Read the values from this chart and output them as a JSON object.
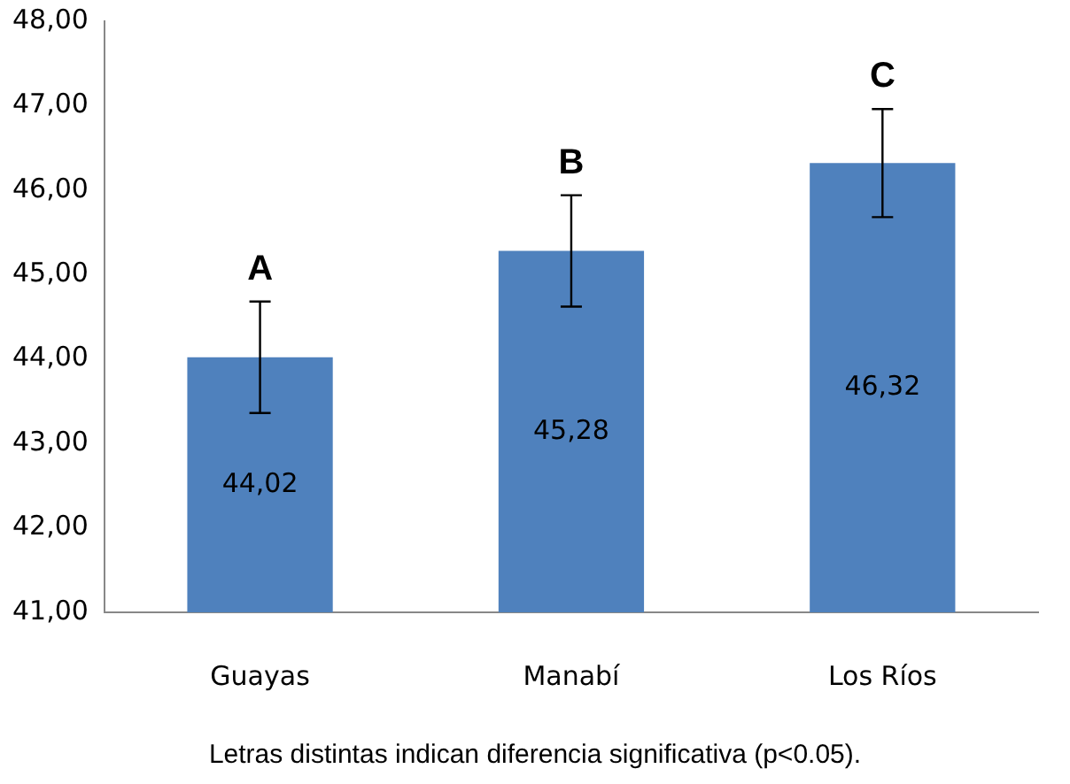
{
  "chart_data": {
    "type": "bar",
    "categories": [
      "Guayas",
      "Manabí",
      "Los Ríos"
    ],
    "series": [
      {
        "color": "#4f81bd",
        "values": [
          44.02,
          45.28,
          46.32
        ],
        "value_labels": [
          "44,02",
          "45,28",
          "46,32"
        ],
        "errors": [
          0.66,
          0.66,
          0.64
        ]
      }
    ],
    "ylim": [
      41,
      48
    ],
    "yticks": [
      {
        "value": 41,
        "label": "41,00"
      },
      {
        "value": 42,
        "label": "42,00"
      },
      {
        "value": 43,
        "label": "43,00"
      },
      {
        "value": 44,
        "label": "44,00"
      },
      {
        "value": 45,
        "label": "45,00"
      },
      {
        "value": 46,
        "label": "46,00"
      },
      {
        "value": 47,
        "label": "47,00"
      },
      {
        "value": 48,
        "label": "48,00"
      }
    ],
    "grid": false,
    "legend": false,
    "annotations": [
      "A",
      "B",
      "C",
      "Letras distintas indican diferencia significativa (p<0.05)."
    ]
  }
}
